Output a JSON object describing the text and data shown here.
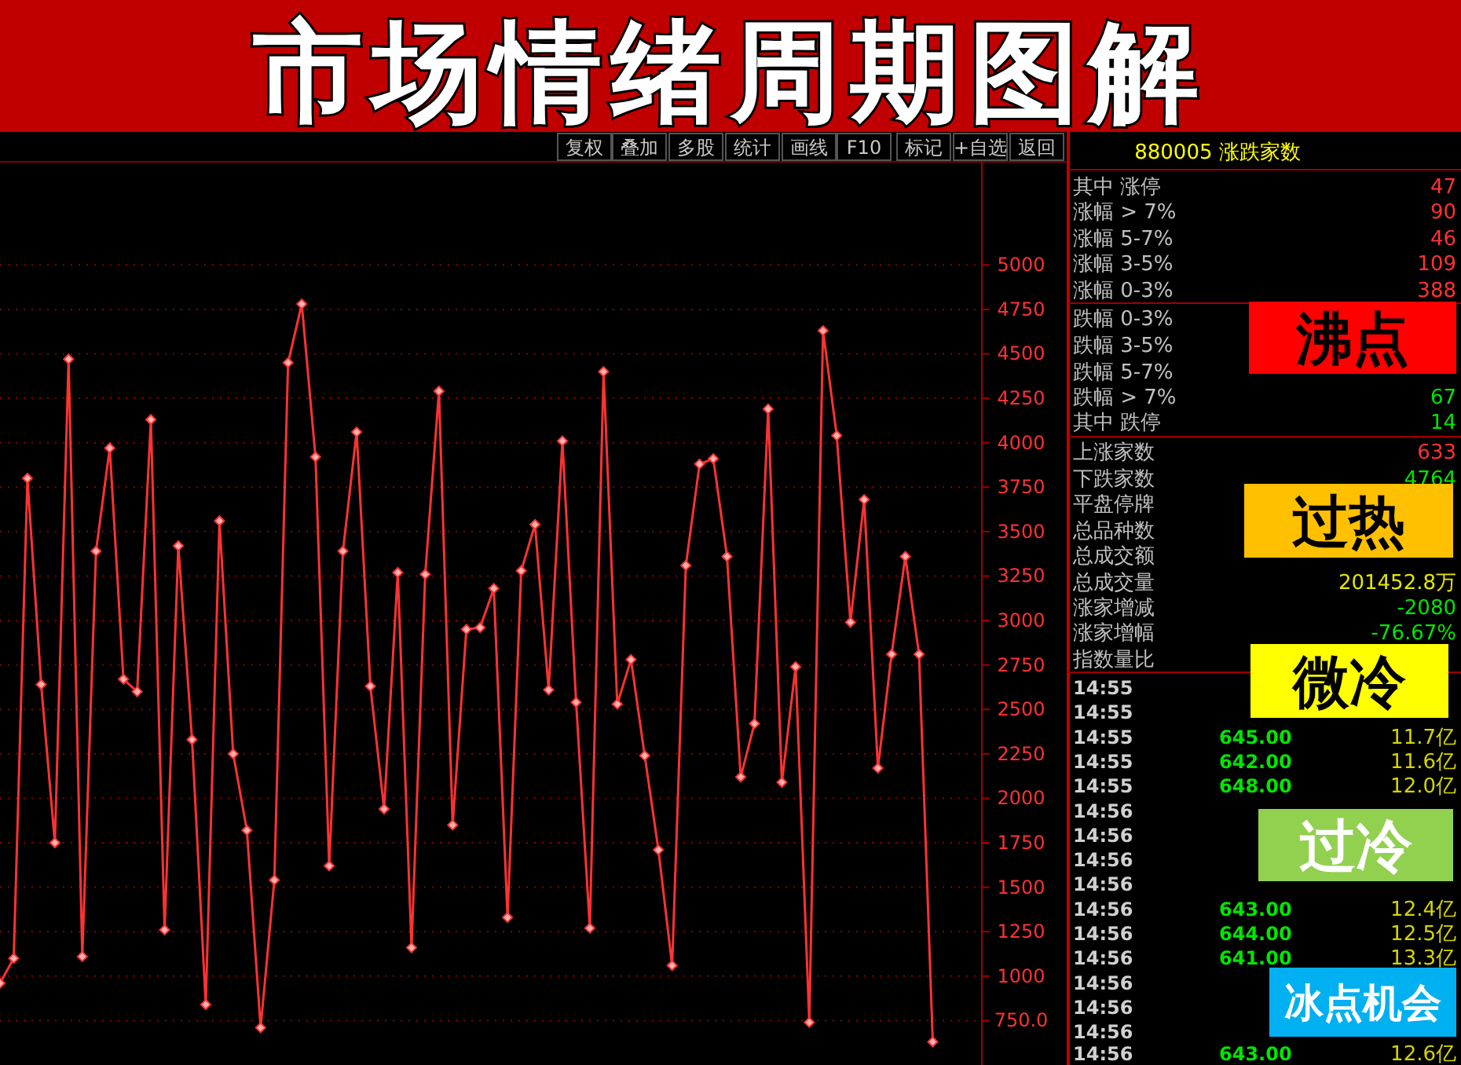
{
  "chart_data": {
    "type": "line",
    "title": "市场情绪周期图解",
    "categories": [
      null,
      null,
      null,
      null,
      null,
      null,
      null,
      null,
      null,
      null,
      null,
      null,
      null,
      null,
      null,
      null,
      null,
      null,
      null,
      null,
      null,
      null,
      null,
      null,
      null,
      null,
      null,
      null,
      null,
      null,
      null,
      null,
      null,
      null,
      null,
      null,
      null,
      null,
      null,
      null,
      null,
      null,
      null,
      null,
      null,
      null,
      null,
      null,
      null,
      null,
      null,
      null,
      null,
      null,
      null,
      null,
      null,
      null,
      null,
      null,
      null,
      null,
      null,
      null,
      null,
      null,
      null,
      null,
      null
    ],
    "series": [
      {
        "color": "#ff3232",
        "values": [
          960,
          1100,
          3800,
          2640,
          1750,
          4470,
          1110,
          3390,
          3970,
          2670,
          2600,
          4130,
          1260,
          3420,
          2330,
          840,
          3560,
          2250,
          1820,
          710,
          1540,
          4450,
          4780,
          3920,
          1620,
          3390,
          4060,
          2630,
          1940,
          3270,
          1160,
          3260,
          4290,
          1850,
          2950,
          2960,
          3180,
          1330,
          3280,
          3540,
          2610,
          4010,
          2540,
          1270,
          4400,
          2530,
          2780,
          2240,
          1710,
          1060,
          3310,
          3880,
          3910,
          3360,
          2120,
          2420,
          4190,
          2090,
          2740,
          740,
          4630,
          4040,
          2990,
          3680,
          2170,
          2810,
          3360,
          2810,
          630
        ]
      }
    ],
    "ylim": [
      500,
      5580
    ],
    "yticks": [
      {
        "value": 750,
        "label": "750.0"
      },
      1000,
      1250,
      1500,
      1750,
      2000,
      2250,
      2500,
      2750,
      3000,
      3250,
      3500,
      3750,
      4000,
      4250,
      4500,
      4750,
      5000
    ],
    "tick_labels": "y",
    "grid": "y",
    "marker": "diamond",
    "annotations": [
      "复权",
      "叠加",
      "多股",
      "统计",
      "画线",
      "F10",
      "标记",
      "+自选",
      "返回",
      "880005 涨跌家数",
      "其中 涨停",
      "47",
      "涨幅 > 7%",
      "90",
      "涨幅 5-7%",
      "46",
      "涨幅 3-5%",
      "109",
      "涨幅 0-3%",
      "388",
      "跌幅 0-3%",
      "跌幅 3-5%",
      "跌幅 5-7%",
      "跌幅 > 7%",
      "67",
      "其中 跌停",
      "14",
      "上涨家数",
      "633",
      "下跌家数",
      "4764",
      "平盘停牌",
      "总品种数",
      "总成交额",
      "总成交量",
      "201452.8万",
      "涨家增减",
      "-2080",
      "涨家增幅",
      "-76.67%",
      "指数量比",
      "14:55",
      "14:55",
      "14:55",
      "645.00",
      "11.7亿",
      "14:55",
      "642.00",
      "11.6亿",
      "14:55",
      "648.00",
      "12.0亿",
      "14:56",
      "14:56",
      "14:56",
      "14:56",
      "14:56",
      "643.00",
      "12.4亿",
      "14:56",
      "644.00",
      "12.5亿",
      "14:56",
      "641.00",
      "13.3亿",
      "14:56",
      "14:56",
      "14:56",
      "14:56",
      "643.00",
      "12.6亿",
      "沸点",
      "过热",
      "微冷",
      "过冷",
      "冰点机会"
    ]
  }
}
